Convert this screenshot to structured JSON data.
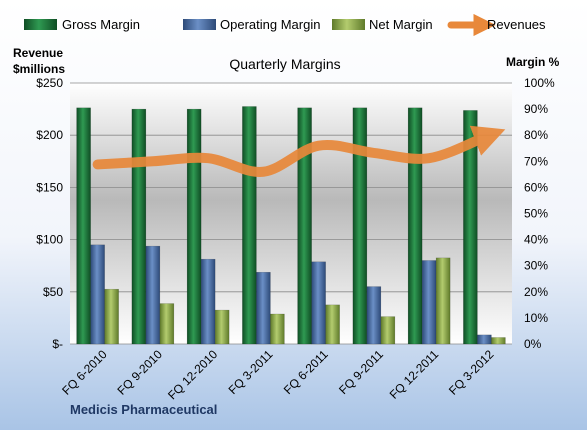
{
  "chart_data": {
    "type": "bar",
    "title": "Quarterly Margins",
    "company": "Medicis Pharmaceutical",
    "left_axis_title_line1": "Revenue",
    "left_axis_title_line2": "$millions",
    "right_axis_title": "Margin %",
    "categories": [
      "FQ 6-2010",
      "FQ 9-2010",
      "FQ 12-2010",
      "FQ 3-2011",
      "FQ 6-2011",
      "FQ 9-2011",
      "FQ 12-2011",
      "FQ 3-2012"
    ],
    "left_axis": {
      "min": 0,
      "max": 250,
      "ticks": [
        "$-",
        "$50",
        "$100",
        "$150",
        "$200",
        "$250"
      ]
    },
    "right_axis": {
      "min": 0,
      "max": 100,
      "ticks": [
        "0%",
        "10%",
        "20%",
        "30%",
        "40%",
        "50%",
        "60%",
        "70%",
        "80%",
        "90%",
        "100%"
      ]
    },
    "series": [
      {
        "name": "Gross Margin",
        "axis": "right",
        "kind": "bar",
        "color": "#1e7a3c",
        "values": [
          90.5,
          90,
          90,
          91,
          90.5,
          90.5,
          90.5,
          89.5
        ]
      },
      {
        "name": "Operating Margin",
        "axis": "right",
        "kind": "bar",
        "color": "#4a6fa5",
        "values": [
          38,
          37.5,
          32.5,
          27.5,
          31.5,
          22,
          32,
          3.5
        ]
      },
      {
        "name": "Net Margin",
        "axis": "right",
        "kind": "bar",
        "color": "#8fb04a",
        "values": [
          21,
          15.5,
          13,
          11.5,
          15,
          10.5,
          33,
          2.5
        ]
      },
      {
        "name": "Revenues",
        "axis": "left",
        "kind": "line",
        "color": "#e8883a",
        "values": [
          172,
          175,
          178,
          165,
          190,
          183,
          178,
          198
        ]
      }
    ],
    "legend_position": "top"
  }
}
